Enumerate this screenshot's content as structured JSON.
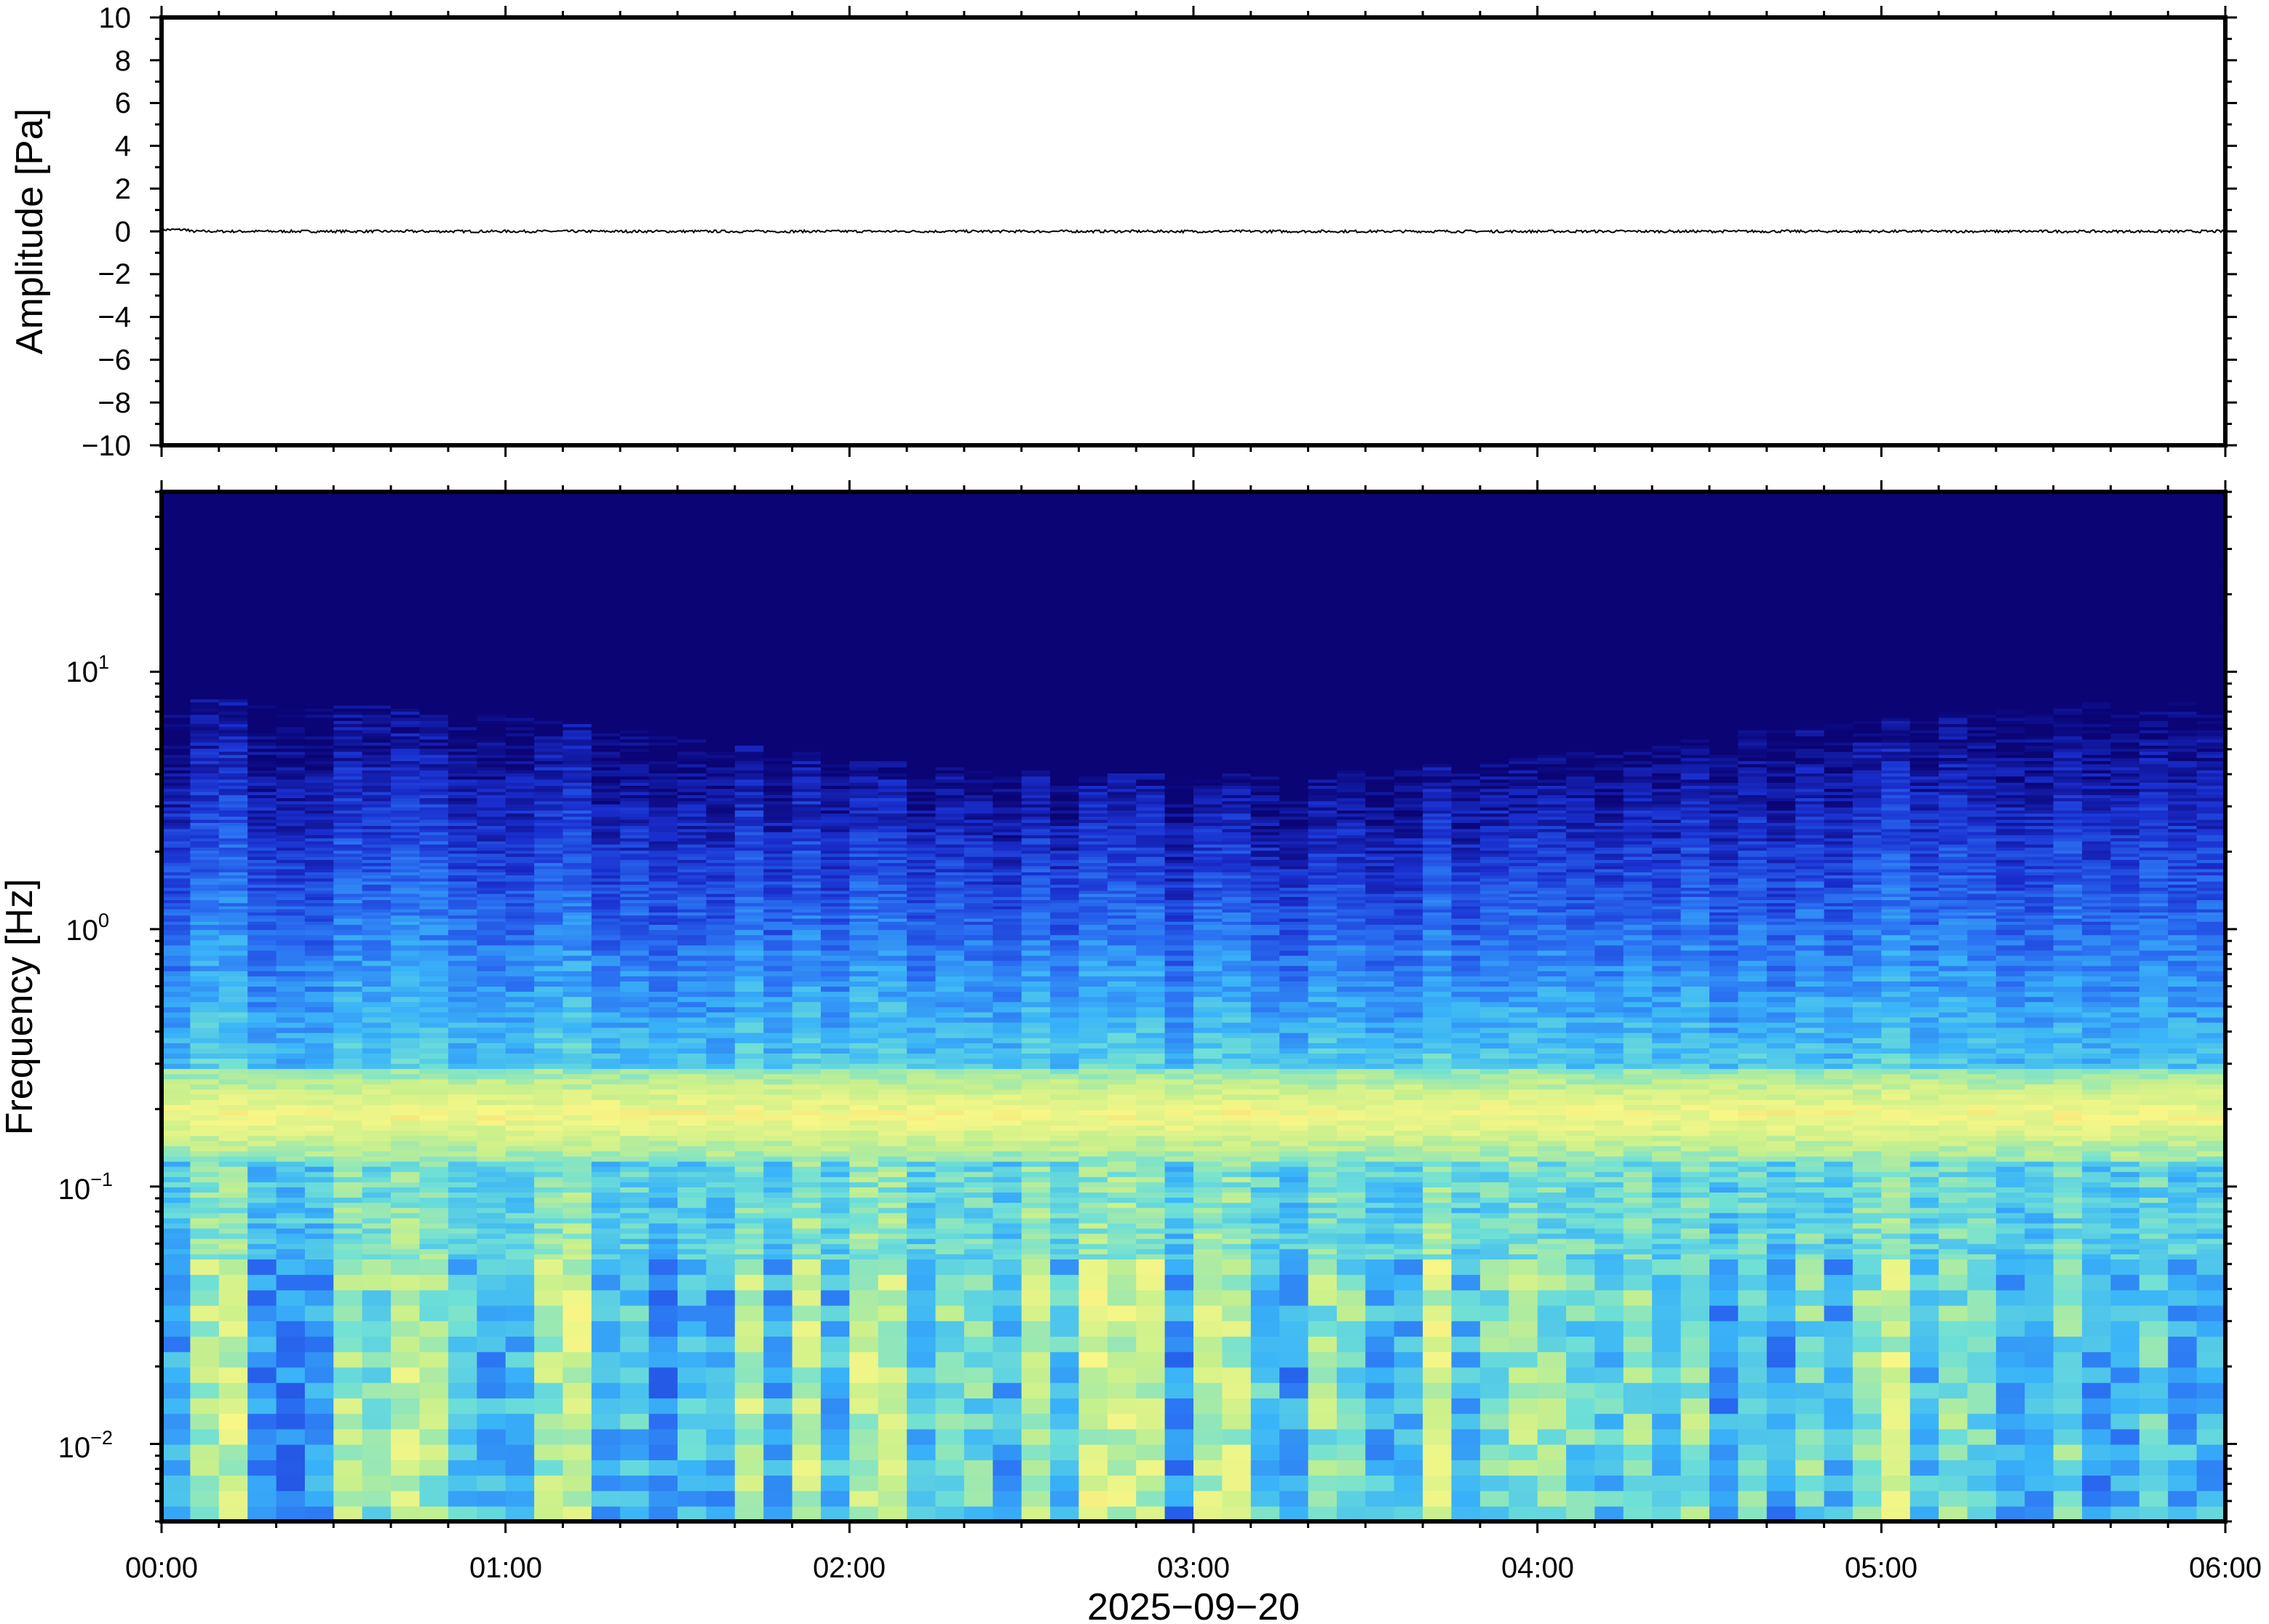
{
  "chart_data": [
    {
      "type": "line",
      "ylabel": "Amplitude [Pa]",
      "ylim": [
        -10,
        10
      ],
      "yticks": [
        -10,
        -8,
        -6,
        -4,
        -2,
        0,
        2,
        4,
        6,
        8,
        10
      ],
      "ytick_labels": [
        "−10",
        "−8",
        "−6",
        "−4",
        "−2",
        "0",
        "2",
        "4",
        "6",
        "8",
        "10"
      ],
      "xlim": [
        "00:00",
        "06:00"
      ],
      "series": [
        {
          "values_note_free": true,
          "x_hours": [
            0,
            0.5,
            1,
            1.5,
            2,
            2.5,
            3,
            3.5,
            4,
            4.5,
            5,
            5.5,
            6
          ],
          "values": [
            0.05,
            0,
            0,
            0,
            0,
            0,
            0,
            0,
            0,
            0,
            0,
            0,
            0
          ],
          "color": "#000000"
        }
      ],
      "grid": false
    },
    {
      "type": "heatmap",
      "ylabel": "Frequency [Hz]",
      "xlabel": "2025−09−20",
      "yscale": "log",
      "ylim": [
        0.005,
        50
      ],
      "yticks": [
        {
          "base": "10",
          "exp": "−2",
          "value": 0.01
        },
        {
          "base": "10",
          "exp": "−1",
          "value": 0.1
        },
        {
          "base": "10",
          "exp": "0",
          "value": 1
        },
        {
          "base": "10",
          "exp": "1",
          "value": 10
        }
      ],
      "x_tick_labels": [
        "00:00",
        "01:00",
        "02:00",
        "03:00",
        "04:00",
        "05:00",
        "06:00"
      ],
      "xlim": [
        "00:00",
        "06:00"
      ],
      "colormap": [
        "#0a0475",
        "#1a2fcf",
        "#2a6ff2",
        "#3ab4f8",
        "#6fe0d6",
        "#c8f08c",
        "#f7f787",
        "#f0c060"
      ],
      "grid": false
    }
  ]
}
